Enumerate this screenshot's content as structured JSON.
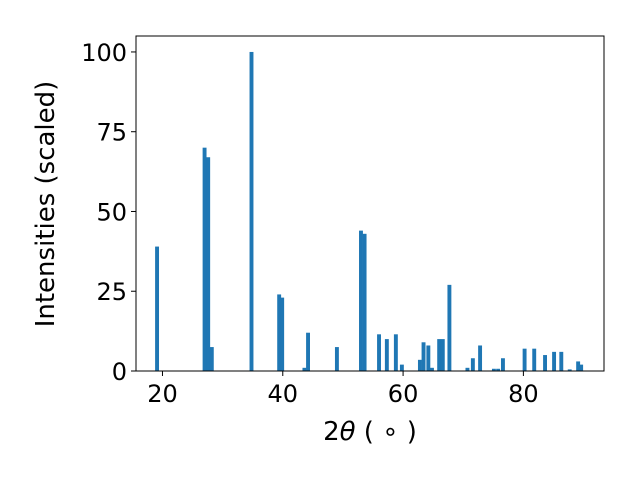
{
  "chart_data": {
    "type": "bar",
    "xlabel_parts": {
      "base": "2",
      "theta": "θ",
      "unit": " ( ∘ )"
    },
    "ylabel": "Intensities (scaled)",
    "xlim": [
      15.6,
      93.4
    ],
    "ylim": [
      0,
      105
    ],
    "x_ticks": [
      20,
      40,
      60,
      80
    ],
    "y_ticks": [
      0,
      25,
      50,
      75,
      100
    ],
    "x_tick_labels": [
      "20",
      "40",
      "60",
      "80"
    ],
    "y_tick_labels": [
      "0",
      "25",
      "50",
      "75",
      "100"
    ],
    "bar_color": "#1f77b4",
    "bar_width": 0.65,
    "series": [
      {
        "x": [
          19.1,
          27.0,
          27.6,
          28.2,
          34.8,
          39.4,
          39.9,
          43.6,
          44.2,
          49.0,
          53.0,
          53.6,
          56.0,
          57.3,
          58.8,
          59.8,
          62.8,
          63.4,
          64.2,
          64.8,
          66.0,
          66.6,
          67.7,
          70.7,
          71.6,
          72.8,
          75.1,
          75.8,
          76.6,
          80.2,
          81.8,
          83.6,
          85.1,
          86.3,
          87.7,
          89.1,
          89.6
        ],
        "values": [
          39,
          70,
          67,
          7.5,
          100,
          24,
          23,
          1,
          12,
          7.5,
          44,
          43,
          11.5,
          10,
          11.5,
          2,
          3.5,
          9,
          8,
          1,
          10,
          10,
          27,
          1,
          4,
          8,
          0.7,
          0.7,
          4,
          7,
          7,
          5,
          6,
          6,
          0.5,
          3,
          2
        ]
      }
    ]
  }
}
